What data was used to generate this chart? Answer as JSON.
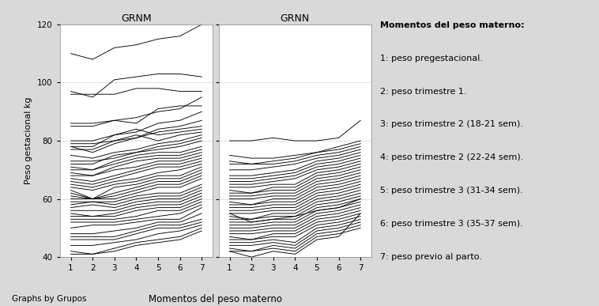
{
  "title_left": "GRNM",
  "title_right": "GRNN",
  "xlabel": "Momentos del peso materno",
  "ylabel": "Peso gestacional kg",
  "footer": "Graphs by Grupos",
  "ylim": [
    40,
    120
  ],
  "yticks": [
    40,
    60,
    80,
    100,
    120
  ],
  "xlim": [
    0.5,
    7.5
  ],
  "xticks": [
    1,
    2,
    3,
    4,
    5,
    6,
    7
  ],
  "legend_title": "Momentos del peso materno:",
  "legend_items": [
    "1: peso pregestacional.",
    "2: peso trimestre 1.",
    "3: peso trimestre 2 (18-21 sem).",
    "4: peso trimestre 2 (22-24 sem).",
    "5: peso trimestre 3 (31-34 sem).",
    "6: peso trimestre 3 (35-37 sem).",
    "7: peso previo al parto."
  ],
  "background_color": "#d9d9d9",
  "panel_color": "#ffffff",
  "line_color": "#000000",
  "line_width": 0.65,
  "grnm_lines": [
    [
      110,
      108,
      112,
      113,
      115,
      116,
      120
    ],
    [
      97,
      95,
      101,
      102,
      103,
      103,
      102
    ],
    [
      96,
      96,
      96,
      98,
      98,
      97,
      97
    ],
    [
      86,
      86,
      87,
      88,
      90,
      91,
      95
    ],
    [
      85,
      85,
      87,
      86,
      91,
      92,
      92
    ],
    [
      80,
      80,
      82,
      83,
      86,
      87,
      90
    ],
    [
      79,
      79,
      80,
      81,
      84,
      85,
      87
    ],
    [
      78,
      76,
      79,
      81,
      83,
      84,
      85
    ],
    [
      78,
      78,
      82,
      84,
      82,
      83,
      84
    ],
    [
      77,
      77,
      80,
      82,
      80,
      82,
      83
    ],
    [
      75,
      74,
      76,
      77,
      79,
      80,
      82
    ],
    [
      73,
      73,
      74,
      76,
      78,
      79,
      81
    ],
    [
      72,
      72,
      75,
      76,
      77,
      78,
      80
    ],
    [
      71,
      70,
      73,
      75,
      76,
      76,
      78
    ],
    [
      70,
      70,
      72,
      74,
      75,
      75,
      77
    ],
    [
      69,
      68,
      71,
      73,
      74,
      74,
      76
    ],
    [
      68,
      68,
      70,
      71,
      73,
      73,
      75
    ],
    [
      67,
      66,
      68,
      70,
      72,
      72,
      74
    ],
    [
      66,
      65,
      67,
      69,
      71,
      71,
      73
    ],
    [
      65,
      64,
      66,
      67,
      69,
      70,
      72
    ],
    [
      64,
      63,
      65,
      66,
      68,
      68,
      71
    ],
    [
      63,
      60,
      64,
      65,
      67,
      67,
      70
    ],
    [
      62,
      60,
      62,
      64,
      66,
      66,
      69
    ],
    [
      61,
      60,
      61,
      63,
      65,
      65,
      68
    ],
    [
      60,
      60,
      60,
      62,
      64,
      64,
      67
    ],
    [
      59,
      59,
      59,
      61,
      62,
      62,
      65
    ],
    [
      58,
      59,
      58,
      60,
      61,
      61,
      64
    ],
    [
      57,
      58,
      57,
      59,
      60,
      60,
      63
    ],
    [
      56,
      56,
      56,
      58,
      59,
      59,
      62
    ],
    [
      55,
      54,
      55,
      57,
      58,
      58,
      61
    ],
    [
      54,
      54,
      54,
      56,
      57,
      57,
      60
    ],
    [
      53,
      53,
      53,
      54,
      56,
      56,
      59
    ],
    [
      52,
      52,
      52,
      53,
      54,
      55,
      58
    ],
    [
      50,
      51,
      51,
      52,
      53,
      53,
      57
    ],
    [
      48,
      48,
      49,
      50,
      52,
      52,
      55
    ],
    [
      47,
      47,
      47,
      49,
      51,
      51,
      53
    ],
    [
      46,
      46,
      46,
      48,
      50,
      50,
      52
    ],
    [
      44,
      44,
      45,
      46,
      48,
      49,
      51
    ],
    [
      42,
      41,
      43,
      45,
      46,
      47,
      50
    ],
    [
      41,
      41,
      42,
      44,
      45,
      46,
      49
    ]
  ],
  "grnn_lines": [
    [
      80,
      80,
      81,
      80,
      80,
      81,
      87
    ],
    [
      75,
      74,
      74,
      75,
      76,
      78,
      80
    ],
    [
      73,
      72,
      73,
      74,
      76,
      77,
      79
    ],
    [
      72,
      72,
      72,
      73,
      75,
      76,
      78
    ],
    [
      70,
      70,
      71,
      72,
      74,
      75,
      77
    ],
    [
      68,
      68,
      69,
      70,
      73,
      74,
      76
    ],
    [
      67,
      67,
      68,
      69,
      72,
      73,
      75
    ],
    [
      66,
      66,
      67,
      68,
      71,
      72,
      74
    ],
    [
      65,
      65,
      66,
      67,
      70,
      71,
      73
    ],
    [
      64,
      64,
      65,
      65,
      69,
      70,
      72
    ],
    [
      63,
      62,
      64,
      64,
      68,
      69,
      71
    ],
    [
      62,
      62,
      63,
      63,
      67,
      68,
      70
    ],
    [
      61,
      61,
      62,
      62,
      66,
      67,
      69
    ],
    [
      60,
      60,
      61,
      61,
      65,
      66,
      68
    ],
    [
      59,
      58,
      60,
      60,
      64,
      65,
      67
    ],
    [
      58,
      58,
      59,
      59,
      63,
      64,
      66
    ],
    [
      57,
      57,
      58,
      58,
      62,
      63,
      65
    ],
    [
      56,
      56,
      57,
      57,
      61,
      62,
      64
    ],
    [
      55,
      55,
      56,
      56,
      60,
      61,
      63
    ],
    [
      54,
      53,
      55,
      55,
      59,
      60,
      62
    ],
    [
      53,
      53,
      54,
      54,
      58,
      59,
      61
    ],
    [
      52,
      52,
      53,
      53,
      57,
      58,
      60
    ],
    [
      51,
      51,
      52,
      52,
      56,
      57,
      59
    ],
    [
      50,
      50,
      51,
      51,
      55,
      56,
      58
    ],
    [
      49,
      49,
      50,
      50,
      54,
      55,
      57
    ],
    [
      48,
      48,
      49,
      49,
      53,
      54,
      56
    ],
    [
      47,
      46,
      48,
      48,
      52,
      53,
      55
    ],
    [
      46,
      46,
      47,
      47,
      51,
      52,
      54
    ],
    [
      45,
      45,
      46,
      45,
      50,
      51,
      53
    ],
    [
      44,
      44,
      45,
      44,
      49,
      50,
      52
    ],
    [
      43,
      42,
      44,
      43,
      48,
      49,
      51
    ],
    [
      42,
      42,
      43,
      42,
      47,
      48,
      50
    ],
    [
      42,
      40,
      42,
      41,
      46,
      47,
      55
    ],
    [
      55,
      52,
      53,
      54,
      56,
      57,
      60
    ]
  ]
}
